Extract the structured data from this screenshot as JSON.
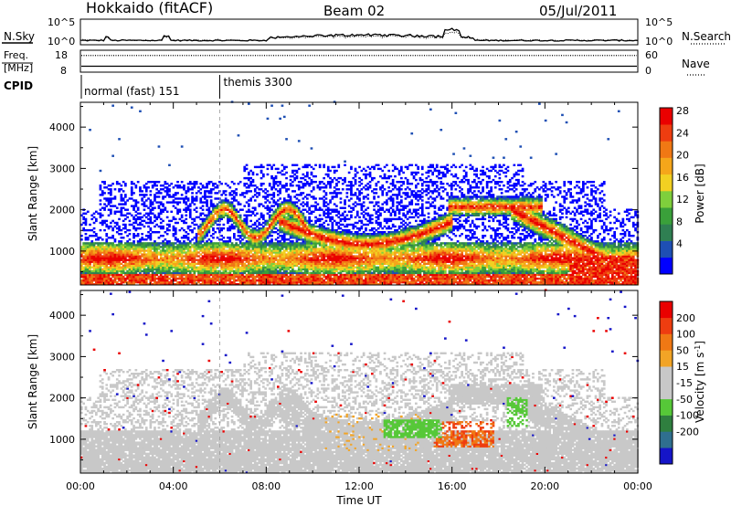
{
  "header": {
    "station": "Hokkaido (fitACF)",
    "beam": "Beam 02",
    "date": "05/Jul/2011"
  },
  "colors": {
    "power_scale": [
      "#0000ff",
      "#1e4fb4",
      "#2f7f52",
      "#3aa03a",
      "#7fcf3c",
      "#f2d022",
      "#f5a61a",
      "#f07814",
      "#ee3d10",
      "#ea0000"
    ],
    "velocity_scale": [
      "#1515c8",
      "#2f6f8f",
      "#2f7f3f",
      "#56c838",
      "#c8c8c8",
      "#c8c8c8",
      "#f2a426",
      "#f07814",
      "#ee3d10",
      "#ea0000"
    ],
    "gray": "#c8c8c8"
  },
  "chart_data": [
    {
      "type": "line",
      "panel": "N.Sky / N.Search",
      "left_label": "N.Sky",
      "right_label": "N.Search",
      "left_ticks": [
        "10^5",
        "10^0"
      ],
      "right_ticks": [
        "10^5",
        "10^0"
      ]
    },
    {
      "type": "line",
      "panel": "Freq / Nave",
      "left_label_1": "Freq.",
      "left_label_2": "[MHz]",
      "right_label": "Nave",
      "left_ticks": [
        "18",
        "8"
      ],
      "right_ticks": [
        "60",
        "0"
      ],
      "freq_mhz": 10.5,
      "nave": 47
    },
    {
      "type": "table",
      "panel": "CPID",
      "label": "CPID",
      "segments": [
        {
          "label": "normal (fast) 151",
          "start_h": 0,
          "end_h": 6
        },
        {
          "label": "themis 3300",
          "start_h": 6,
          "end_h": 24
        }
      ]
    },
    {
      "type": "heatmap",
      "panel": "Power",
      "ylabel": "Slant Range [km]",
      "xlim": [
        0,
        24
      ],
      "ylim": [
        180,
        4600
      ],
      "yticks": [
        1000,
        2000,
        3000,
        4000
      ],
      "colorbar_label": "Power [dB]",
      "colorbar_ticks": [
        "28",
        "24",
        "20",
        "16",
        "12",
        "8",
        "4"
      ]
    },
    {
      "type": "heatmap",
      "panel": "Velocity",
      "ylabel": "Slant Range [km]",
      "xlabel": "Time UT",
      "xlim": [
        0,
        24
      ],
      "ylim": [
        180,
        4600
      ],
      "yticks": [
        1000,
        2000,
        3000,
        4000
      ],
      "xtick_labels": [
        "00:00",
        "04:00",
        "08:00",
        "12:00",
        "16:00",
        "20:00",
        "00:00"
      ],
      "colorbar_label": "Velocity [m s",
      "colorbar_label_sup": "-1",
      "colorbar_label_end": "]",
      "colorbar_ticks": [
        "200",
        "100",
        "50",
        "15",
        "-15",
        "-50",
        "-100",
        "-200"
      ]
    }
  ]
}
